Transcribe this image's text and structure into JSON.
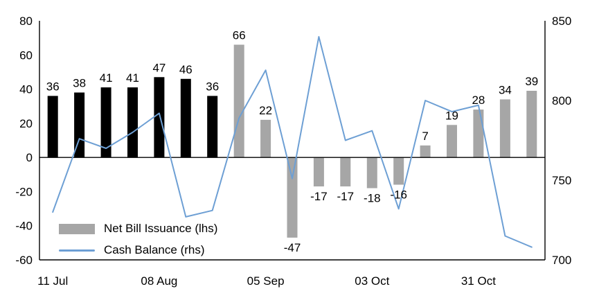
{
  "chart_data": {
    "type": "bar-line-combo",
    "title": "",
    "black_bar_count": 7,
    "bar_series": {
      "name": "Net Bill Issuance (lhs)",
      "axis": "left",
      "values": [
        36,
        38,
        41,
        41,
        47,
        46,
        36,
        66,
        22,
        -47,
        -17,
        -17,
        -18,
        -16,
        7,
        19,
        28,
        34,
        39
      ]
    },
    "line_series": {
      "name": "Cash Balance (rhs)",
      "axis": "right",
      "values": [
        730,
        776,
        770,
        780,
        792,
        727,
        731,
        789,
        819,
        751,
        840,
        775,
        781,
        732,
        800,
        793,
        797,
        715,
        708
      ]
    },
    "left_axis": {
      "min": -60,
      "max": 80,
      "ticks": [
        80,
        60,
        40,
        20,
        0,
        -20,
        -40,
        -60
      ]
    },
    "right_axis": {
      "min": 700,
      "max": 850,
      "ticks": [
        850,
        800,
        750,
        700
      ]
    },
    "x_ticks": [
      {
        "label": "11 Jul",
        "index": 0
      },
      {
        "label": "08 Aug",
        "index": 4
      },
      {
        "label": "05 Sep",
        "index": 8
      },
      {
        "label": "03 Oct",
        "index": 12
      },
      {
        "label": "31 Oct",
        "index": 16
      }
    ],
    "legend": [
      {
        "label": "Net Bill Issuance (lhs)",
        "type": "bar",
        "color": "#a6a6a6"
      },
      {
        "label": "Cash Balance (rhs)",
        "type": "line",
        "color": "#6d9fd4"
      }
    ],
    "colors": {
      "black_bars": "#000000",
      "gray_bars": "#a6a6a6",
      "line": "#6d9fd4",
      "axis": "#000000"
    },
    "grid": "off",
    "legend_position": "inside-bottom-left"
  }
}
